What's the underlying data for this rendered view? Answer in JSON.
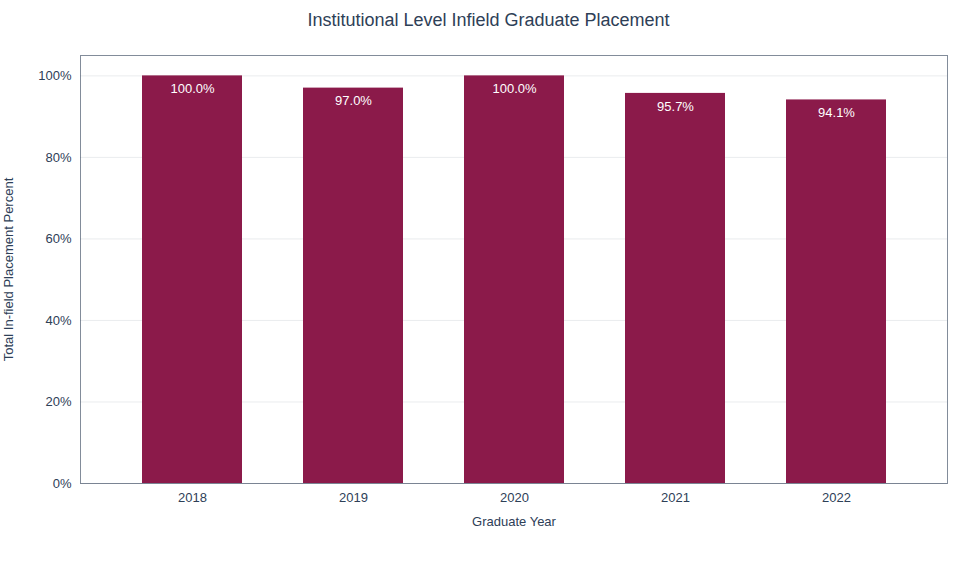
{
  "chart_data": {
    "type": "bar",
    "title": "Institutional Level Infield Graduate Placement",
    "xlabel": "Graduate Year",
    "ylabel": "Total In-field Placement Percent",
    "categories": [
      "2018",
      "2019",
      "2020",
      "2021",
      "2022"
    ],
    "values": [
      100.0,
      97.0,
      100.0,
      95.7,
      94.1
    ],
    "value_labels": [
      "100.0%",
      "97.0%",
      "100.0%",
      "95.7%",
      "94.1%"
    ],
    "color": "#8B1A4A",
    "ylim": [
      0,
      105
    ],
    "yticks": [
      {
        "value": 0,
        "label": "0%"
      },
      {
        "value": 20,
        "label": "20%"
      },
      {
        "value": 40,
        "label": "40%"
      },
      {
        "value": 60,
        "label": "60%"
      },
      {
        "value": 80,
        "label": "80%"
      },
      {
        "value": 100,
        "label": "100%"
      }
    ],
    "grid": true,
    "data_labels": true
  }
}
